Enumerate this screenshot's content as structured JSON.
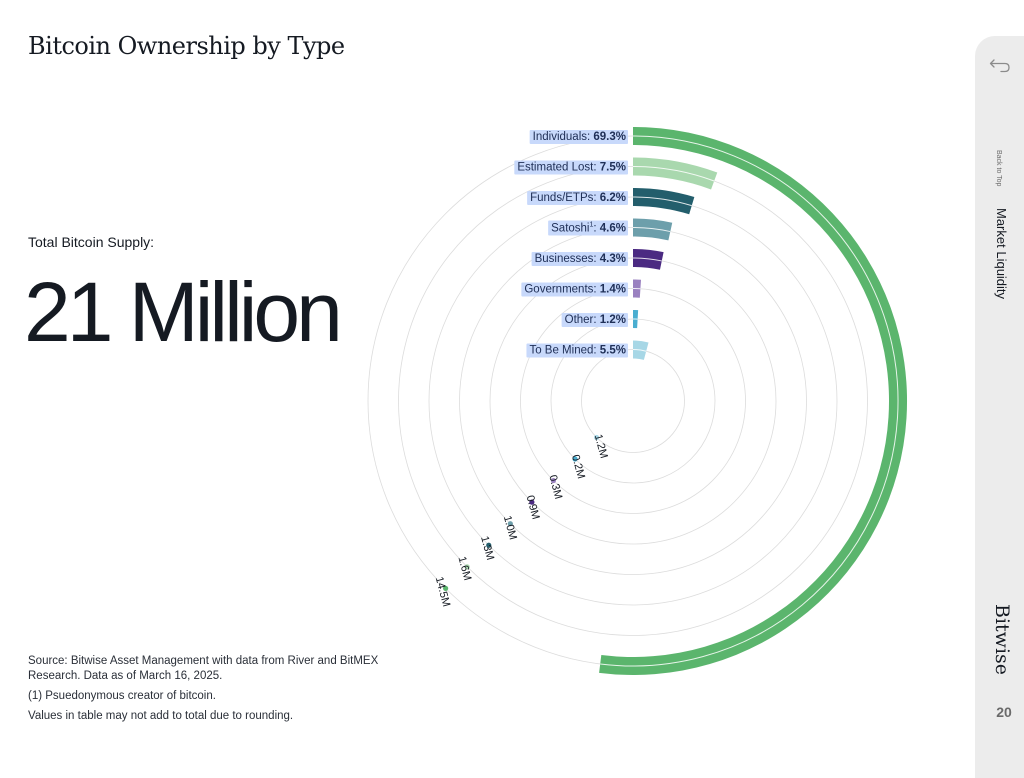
{
  "page": {
    "title": "Bitcoin Ownership by Type",
    "supply_label": "Total Bitcoin Supply:",
    "supply_value": "21 Million"
  },
  "notes": {
    "source": "Source: Bitwise Asset Management with data from River and BitMEX Research. Data as of March 16, 2025.",
    "footnote": "(1) Psuedonymous creator of bitcoin.",
    "disclaimer": "Values in table may not add to total due to rounding."
  },
  "sidebar": {
    "back_label": "Back to Top",
    "section_label": "Market Liquidity",
    "brand": "Bitwise",
    "page_number": "20"
  },
  "chart_data": {
    "type": "radial-bar",
    "total": "21 Million",
    "series": [
      {
        "label": "Individuals",
        "value": "69.3%",
        "amount": "14.5M",
        "pct": 69.3,
        "color": "#5bb56d"
      },
      {
        "label": "Estimated Lost",
        "value": "7.5%",
        "amount": "1.6M",
        "pct": 7.5,
        "color": "#a9d8ae"
      },
      {
        "label": "Funds/ETPs",
        "value": "6.2%",
        "amount": "1.3M",
        "pct": 6.2,
        "color": "#235e6c"
      },
      {
        "label": "Satoshi",
        "note": "1",
        "value": "4.6%",
        "amount": "1.0M",
        "pct": 4.6,
        "color": "#6d9fab"
      },
      {
        "label": "Businesses",
        "value": "4.3%",
        "amount": "0.9M",
        "pct": 4.3,
        "color": "#4b2a82"
      },
      {
        "label": "Governments",
        "value": "1.4%",
        "amount": "0.3M",
        "pct": 1.4,
        "color": "#9a81c0"
      },
      {
        "label": "Other",
        "value": "1.2%",
        "amount": "0.2M",
        "pct": 1.2,
        "color": "#4aaed0"
      },
      {
        "label": "To Be Mined",
        "value": "5.5%",
        "amount": "1.2M",
        "pct": 5.5,
        "color": "#a7d7e6"
      }
    ]
  }
}
